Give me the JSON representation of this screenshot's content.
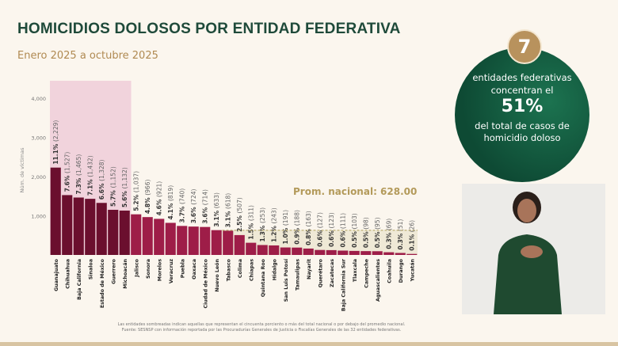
{
  "header": {
    "title": "HOMICIDIOS DOLOSOS POR ENTIDAD FEDERATIVA",
    "subtitle": "Enero 2025 a octubre 2025"
  },
  "callout": {
    "number": "7",
    "line1": "entidades federativas concentran el",
    "percent": "51%",
    "line2": "del total de casos de homicidio doloso"
  },
  "footnote": {
    "line1": "Las entidades sombreadas indican aquellas que representan el cincuenta porciento o más del total nacional o por debajo del promedio nacional.",
    "line2": "Fuente: SESNSP con información reportada por las Procuradurías Generales de Justicia o Fiscalías Generales de las 32 entidades federativas."
  },
  "colors": {
    "top": "#6b0f2e",
    "rest": "#9e1d48",
    "avg": "#b0a05a",
    "shade_top": "#f1d3dc",
    "shade_low": "#efe9d6"
  },
  "chart_data": {
    "type": "bar",
    "ylabel": "Núm. de víctimas",
    "ylim": [
      0,
      4000
    ],
    "yticks": [
      "1,000",
      "2,000",
      "3,000",
      "4,000"
    ],
    "average_label": "Prom. nacional: 628.00",
    "average": 628,
    "highlight_count": 7,
    "categories": [
      "Guanajuato",
      "Chihuahua",
      "Baja California",
      "Sinaloa",
      "Estado de México",
      "Guerrero",
      "Michoacán",
      "Jalisco",
      "Sonora",
      "Morelos",
      "Veracruz",
      "Puebla",
      "Oaxaca",
      "Ciudad de México",
      "Nuevo León",
      "Tabasco",
      "Colima",
      "Chiapas",
      "Quintana Roo",
      "Hidalgo",
      "San Luis Potosí",
      "Tamaulipas",
      "Nayarit",
      "Querétaro",
      "Zacatecas",
      "Baja California Sur",
      "Tlaxcala",
      "Campeche",
      "Aguascalientes",
      "Coahuila",
      "Durango",
      "Yucatán"
    ],
    "values": [
      2229,
      1527,
      1465,
      1432,
      1328,
      1152,
      1132,
      1037,
      966,
      921,
      819,
      740,
      724,
      714,
      633,
      618,
      507,
      311,
      253,
      243,
      191,
      188,
      163,
      127,
      123,
      111,
      103,
      98,
      95,
      69,
      51,
      26
    ],
    "percents": [
      "11.1%",
      "7.6%",
      "7.3%",
      "7.1%",
      "6.6%",
      "5.7%",
      "5.6%",
      "5.2%",
      "4.8%",
      "4.6%",
      "4.1%",
      "3.7%",
      "3.6%",
      "3.6%",
      "3.1%",
      "3.1%",
      "2.5%",
      "1.5%",
      "1.3%",
      "1.2%",
      "1.0%",
      "0.9%",
      "0.8%",
      "0.6%",
      "0.6%",
      "0.6%",
      "0.5%",
      "0.5%",
      "0.5%",
      "0.3%",
      "0.3%",
      "0.1%"
    ],
    "value_labels": [
      "(2,229)",
      "(1,527)",
      "(1,465)",
      "(1,432)",
      "(1,328)",
      "(1,152)",
      "(1,132)",
      "(1,037)",
      "(966)",
      "(921)",
      "(819)",
      "(740)",
      "(724)",
      "(714)",
      "(633)",
      "(618)",
      "(507)",
      "(311)",
      "(253)",
      "(243)",
      "(191)",
      "(188)",
      "(163)",
      "(127)",
      "(123)",
      "(111)",
      "(103)",
      "(98)",
      "(95)",
      "(69)",
      "(51)",
      "(26)"
    ]
  }
}
